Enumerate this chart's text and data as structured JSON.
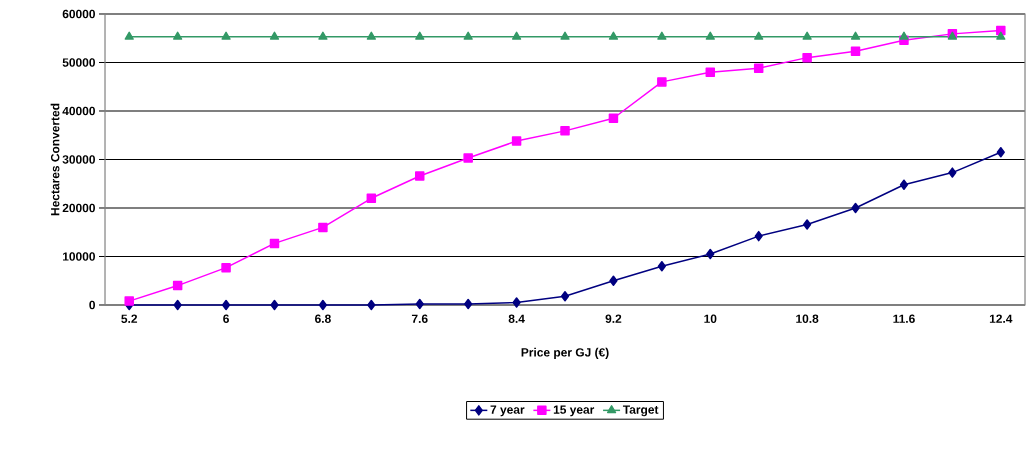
{
  "chart_data": {
    "type": "line",
    "xlabel": "Price per GJ (€)",
    "ylabel": "Hectares Converted",
    "categories": [
      "5.2",
      null,
      "6",
      null,
      "6.8",
      null,
      "7.6",
      null,
      "8.4",
      null,
      "9.2",
      null,
      "10",
      null,
      "10.8",
      null,
      "11.6",
      null,
      "12.4"
    ],
    "series": [
      {
        "name": "7 year",
        "color": "#000080",
        "marker": "diamond",
        "values": [
          0,
          0,
          0,
          0,
          0,
          0,
          200,
          200,
          500,
          1800,
          5000,
          8000,
          10500,
          14200,
          16600,
          20000,
          24800,
          27300,
          31500
        ]
      },
      {
        "name": "15 year",
        "color": "#ff00ff",
        "marker": "square",
        "values": [
          800,
          4000,
          7700,
          12700,
          16000,
          22000,
          26600,
          30300,
          33800,
          35900,
          38500,
          46000,
          48000,
          48800,
          51000,
          52300,
          54600,
          55900,
          56600
        ]
      },
      {
        "name": "Target",
        "color": "#339966",
        "marker": "triangle",
        "values": [
          55300,
          55300,
          55300,
          55300,
          55300,
          55300,
          55300,
          55300,
          55300,
          55300,
          55300,
          55300,
          55300,
          55300,
          55300,
          55300,
          55300,
          55300,
          55300
        ]
      }
    ],
    "ylim": [
      0,
      60000
    ],
    "yticks": [
      0,
      10000,
      20000,
      30000,
      40000,
      50000,
      60000
    ],
    "grid": "y",
    "legend": "bottom",
    "line_style": "solid"
  }
}
